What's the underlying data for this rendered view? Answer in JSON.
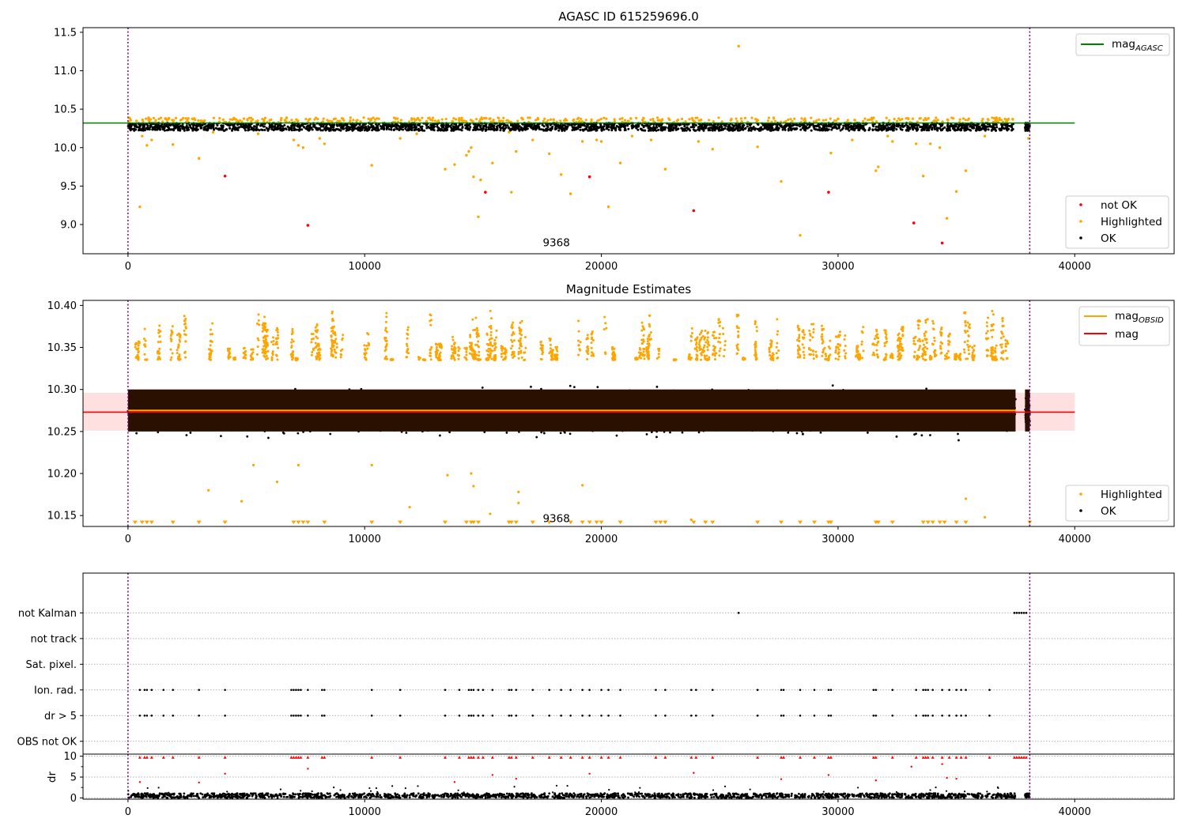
{
  "chart_data": [
    {
      "type": "scatter",
      "title": "AGASC ID 615259696.0",
      "xlim": [
        -1900,
        44200
      ],
      "ylim": [
        8.62,
        11.56
      ],
      "xticks": [
        0,
        10000,
        20000,
        30000,
        40000
      ],
      "xtick_labels": [
        "0",
        "10000",
        "20000",
        "30000",
        "40000"
      ],
      "yticks": [
        9.0,
        9.5,
        10.0,
        10.5,
        11.0,
        11.5
      ],
      "ytick_labels": [
        "9.0",
        "9.5",
        "10.0",
        "10.5",
        "11.0",
        "11.5"
      ],
      "annotation": "9368",
      "annotation_pos": {
        "x": 19000,
        "y": 8.77
      },
      "obs_boundaries": [
        0,
        38100
      ],
      "reference_line": {
        "name": "mag",
        "subscript": "AGASC",
        "y": 10.32,
        "x_range": [
          -1900,
          40000
        ],
        "color": "#008000"
      },
      "ok_band": {
        "y_range": [
          10.22,
          10.32
        ],
        "x_range": [
          0,
          37500
        ],
        "gap_range": [
          37500,
          37900
        ],
        "tail_range": [
          37900,
          38100
        ]
      },
      "series": [
        {
          "name": "not OK",
          "color": "#ff0000",
          "points": [
            [
              4100,
              9.63
            ],
            [
              7600,
              8.99
            ],
            [
              15100,
              9.42
            ],
            [
              19500,
              9.62
            ],
            [
              23900,
              9.18
            ],
            [
              29600,
              9.42
            ],
            [
              33200,
              9.02
            ],
            [
              34400,
              8.76
            ]
          ]
        },
        {
          "name": "Highlighted",
          "color": "#ffa500",
          "points": [
            [
              25800,
              11.32
            ],
            [
              500,
              9.23
            ],
            [
              600,
              10.15
            ],
            [
              800,
              10.03
            ],
            [
              1000,
              10.1
            ],
            [
              1900,
              10.04
            ],
            [
              3000,
              9.86
            ],
            [
              3600,
              10.2
            ],
            [
              5500,
              10.18
            ],
            [
              7000,
              10.1
            ],
            [
              7200,
              10.03
            ],
            [
              7400,
              10.0
            ],
            [
              8100,
              10.12
            ],
            [
              8300,
              10.05
            ],
            [
              10300,
              9.77
            ],
            [
              11500,
              10.12
            ],
            [
              12200,
              10.18
            ],
            [
              13400,
              9.72
            ],
            [
              13800,
              9.78
            ],
            [
              14300,
              9.9
            ],
            [
              14400,
              9.95
            ],
            [
              14500,
              10.0
            ],
            [
              14600,
              9.62
            ],
            [
              14800,
              9.1
            ],
            [
              14900,
              9.58
            ],
            [
              15400,
              9.8
            ],
            [
              16100,
              10.2
            ],
            [
              16200,
              9.42
            ],
            [
              16400,
              9.95
            ],
            [
              17100,
              10.1
            ],
            [
              17800,
              9.92
            ],
            [
              18300,
              9.65
            ],
            [
              18700,
              9.4
            ],
            [
              19200,
              10.08
            ],
            [
              19800,
              10.1
            ],
            [
              20000,
              10.08
            ],
            [
              20300,
              9.23
            ],
            [
              20800,
              9.8
            ],
            [
              21300,
              10.15
            ],
            [
              22100,
              10.1
            ],
            [
              22700,
              9.72
            ],
            [
              24100,
              10.08
            ],
            [
              24700,
              9.98
            ],
            [
              26600,
              10.01
            ],
            [
              27600,
              9.56
            ],
            [
              28400,
              8.86
            ],
            [
              29700,
              9.93
            ],
            [
              30600,
              10.1
            ],
            [
              31600,
              9.7
            ],
            [
              31700,
              9.75
            ],
            [
              32100,
              10.15
            ],
            [
              32300,
              10.08
            ],
            [
              33300,
              10.05
            ],
            [
              33600,
              9.63
            ],
            [
              33900,
              10.05
            ],
            [
              34300,
              10.0
            ],
            [
              34600,
              9.08
            ],
            [
              35000,
              9.43
            ],
            [
              35400,
              9.7
            ],
            [
              36200,
              10.15
            ],
            [
              38050,
              10.12
            ]
          ]
        },
        {
          "name": "OK",
          "color": "#000000",
          "summary": "dense points 10.22–10.32 across 0–38100"
        }
      ],
      "legend": [
        {
          "label": "mag",
          "subscript": "AGASC",
          "marker": "line",
          "color": "#008000",
          "position": "upper right"
        },
        {
          "label": "not OK",
          "marker": "dot",
          "color": "#ff0000",
          "position": "lower right"
        },
        {
          "label": "Highlighted",
          "marker": "dot",
          "color": "#ffa500",
          "position": "lower right"
        },
        {
          "label": "OK",
          "marker": "dot",
          "color": "#000000",
          "position": "lower right"
        }
      ]
    },
    {
      "type": "scatter",
      "title": "Magnitude Estimates",
      "xlim": [
        -1900,
        44200
      ],
      "ylim": [
        10.137,
        10.406
      ],
      "xticks": [
        0,
        10000,
        20000,
        30000,
        40000
      ],
      "xtick_labels": [
        "0",
        "10000",
        "20000",
        "30000",
        "40000"
      ],
      "yticks": [
        10.15,
        10.2,
        10.25,
        10.3,
        10.35,
        10.4
      ],
      "ytick_labels": [
        "10.15",
        "10.20",
        "10.25",
        "10.30",
        "10.35",
        "10.40"
      ],
      "annotation": "9368",
      "annotation_pos": {
        "x": 19000,
        "y": 10.147
      },
      "obs_boundaries": [
        0,
        38100
      ],
      "mean_line": {
        "name": "mag",
        "y": 10.273,
        "band": [
          10.251,
          10.296
        ],
        "x_range": [
          -1900,
          40000
        ],
        "color": "#ff0000",
        "band_color": "#ffcccc"
      },
      "obsid_line": {
        "name": "mag",
        "subscript": "OBSID",
        "y": 10.275,
        "x_range": [
          0,
          37500
        ],
        "color": "#ffa500"
      },
      "dense_core": {
        "y_range": [
          10.25,
          10.3
        ],
        "color": "#2a1000"
      },
      "ok_envelope": {
        "y_range": [
          10.21,
          10.335
        ]
      },
      "highlighted_envelope": {
        "y_range": [
          10.335,
          10.405
        ]
      },
      "clipped_markers_y": 10.142,
      "clipped_markers_x": [
        300,
        600,
        800,
        1000,
        1900,
        3000,
        4100,
        7000,
        7200,
        7400,
        7600,
        8300,
        10300,
        11500,
        13400,
        14300,
        14500,
        14600,
        14800,
        16100,
        16200,
        16400,
        17100,
        17800,
        18700,
        19200,
        19500,
        19800,
        20000,
        20800,
        22300,
        22500,
        22700,
        23900,
        24400,
        24700,
        26600,
        27600,
        28400,
        29000,
        29600,
        29700,
        31600,
        31700,
        32300,
        33600,
        33800,
        34000,
        34300,
        34500,
        35000,
        35400,
        38100
      ],
      "highlighted_outliers": [
        [
          10300,
          10.21
        ],
        [
          7200,
          10.21
        ],
        [
          6300,
          10.19
        ],
        [
          5300,
          10.21
        ],
        [
          4800,
          10.167
        ],
        [
          3400,
          10.18
        ],
        [
          11900,
          10.16
        ],
        [
          13500,
          10.198
        ],
        [
          14500,
          10.2
        ],
        [
          14600,
          10.185
        ],
        [
          15300,
          10.152
        ],
        [
          16500,
          10.165
        ],
        [
          16500,
          10.178
        ],
        [
          19200,
          10.186
        ],
        [
          36200,
          10.148
        ],
        [
          35400,
          10.17
        ],
        [
          23800,
          10.145
        ]
      ],
      "series": [
        {
          "name": "Highlighted",
          "color": "#ffa500"
        },
        {
          "name": "OK",
          "color": "#000000"
        }
      ],
      "legend": [
        {
          "label": "mag",
          "subscript": "OBSID",
          "marker": "line",
          "color": "#ffa500",
          "position": "upper right"
        },
        {
          "label": "mag",
          "marker": "line",
          "color": "#ff0000",
          "position": "upper right"
        },
        {
          "label": "Highlighted",
          "marker": "dot",
          "color": "#ffa500",
          "position": "lower right"
        },
        {
          "label": "OK",
          "marker": "dot",
          "color": "#000000",
          "position": "lower right"
        }
      ]
    },
    {
      "type": "scatter",
      "title": "",
      "xlim": [
        -1900,
        44200
      ],
      "ylim": [
        -0.5,
        6.55
      ],
      "xticks": [
        0,
        10000,
        20000,
        30000,
        40000
      ],
      "xtick_labels": [],
      "categories": [
        "OBS not OK",
        "dr > 5",
        "Ion. rad.",
        "Sat. pixel.",
        "not track",
        "not Kalman"
      ],
      "obs_boundaries": [
        0,
        38100
      ],
      "flag_points": {
        "not Kalman": [
          25800,
          37450,
          37550,
          37650,
          37750,
          37850,
          37950
        ],
        "Ion. rad.": [
          500,
          700,
          800,
          1000,
          1500,
          1900,
          3000,
          4100,
          6900,
          7000,
          7100,
          7200,
          7300,
          7600,
          8200,
          8300,
          10300,
          11500,
          13400,
          14000,
          14400,
          14500,
          14600,
          14800,
          15000,
          15400,
          16100,
          16200,
          16400,
          17100,
          17800,
          18300,
          18700,
          19200,
          19500,
          20000,
          20300,
          20800,
          22300,
          22700,
          23800,
          24000,
          24700,
          26600,
          27600,
          27700,
          28400,
          29000,
          29600,
          29700,
          31500,
          31600,
          32300,
          33300,
          33600,
          33700,
          33800,
          34000,
          34400,
          34700,
          35000,
          35200,
          35400,
          36400
        ],
        "dr > 5": [
          500,
          700,
          800,
          1000,
          1500,
          1900,
          3000,
          4100,
          6900,
          7000,
          7100,
          7200,
          7300,
          7600,
          8200,
          8300,
          10300,
          11500,
          13400,
          14000,
          14400,
          14500,
          14600,
          14800,
          15000,
          15400,
          16100,
          16200,
          16400,
          17100,
          17800,
          18300,
          18700,
          19200,
          19500,
          20000,
          20300,
          20800,
          22300,
          22700,
          23800,
          24000,
          24700,
          26600,
          27600,
          27700,
          28400,
          29000,
          29600,
          29700,
          31500,
          31600,
          32300,
          33300,
          33600,
          33700,
          33800,
          34000,
          34400,
          34700,
          35000,
          35200,
          35400,
          36400
        ]
      }
    },
    {
      "type": "scatter",
      "title": "",
      "ylabel": "dr",
      "xlim": [
        -1900,
        44200
      ],
      "ylim": [
        -0.3,
        10.5
      ],
      "xticks": [
        0,
        10000,
        20000,
        30000,
        40000
      ],
      "xtick_labels": [
        "0",
        "10000",
        "20000",
        "30000",
        "40000"
      ],
      "yticks": [
        0,
        5,
        10
      ],
      "ytick_labels": [
        "0",
        "5",
        "10"
      ],
      "minor_yticks": [
        2.5,
        7.5
      ],
      "obs_boundaries": [
        0,
        38100
      ],
      "clipped_markers_y": 9.7,
      "clipped_markers_x": [
        500,
        700,
        800,
        1000,
        1500,
        1900,
        3000,
        4100,
        6900,
        7000,
        7100,
        7200,
        7300,
        7600,
        8200,
        8300,
        10300,
        11500,
        13400,
        14000,
        14400,
        14500,
        14600,
        14800,
        15000,
        15400,
        16100,
        16200,
        16400,
        17100,
        17800,
        18300,
        18700,
        19200,
        19500,
        20000,
        20300,
        20800,
        22300,
        22700,
        23800,
        24000,
        24700,
        26600,
        27600,
        27700,
        28400,
        29000,
        29600,
        29700,
        31500,
        31600,
        32300,
        33300,
        33600,
        33700,
        33800,
        34000,
        34400,
        34700,
        35000,
        35200,
        35400,
        36400,
        37450,
        37550,
        37650,
        37750,
        37850,
        37950
      ],
      "red_points": [
        [
          500,
          3.8
        ],
        [
          3000,
          3.7
        ],
        [
          4100,
          5.8
        ],
        [
          7600,
          7.0
        ],
        [
          13800,
          3.8
        ],
        [
          15400,
          5.5
        ],
        [
          16400,
          4.6
        ],
        [
          19500,
          5.8
        ],
        [
          23900,
          6.0
        ],
        [
          27600,
          4.5
        ],
        [
          29600,
          5.5
        ],
        [
          31600,
          4.2
        ],
        [
          33100,
          7.5
        ],
        [
          34400,
          8.1
        ],
        [
          34600,
          4.8
        ],
        [
          35000,
          4.6
        ]
      ],
      "baseline": {
        "y_range": [
          0.0,
          1.1
        ],
        "color": "#000000"
      }
    }
  ]
}
